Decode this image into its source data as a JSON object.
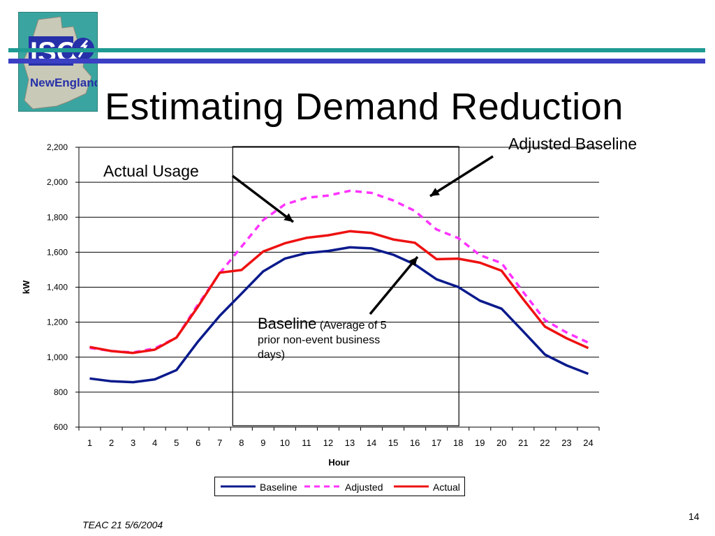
{
  "slide": {
    "title": "Estimating Demand Reduction",
    "footer": "TEAC 21 5/6/2004",
    "page_number": "14",
    "logo_text_top": "ISO",
    "logo_text_bottom": "NewEngland"
  },
  "annotations": {
    "adjusted_baseline": "Adjusted Baseline",
    "actual_usage": "Actual Usage",
    "baseline_title": "Baseline",
    "baseline_note": "(Average of 5 prior non-event business days)"
  },
  "colors": {
    "baseline": "#0a1a8c",
    "adjusted": "#ff33ff",
    "actual": "#ee1111",
    "stripe_teal": "#1f9b93",
    "stripe_blue": "#3b3fc4",
    "logo_bg": "#3aa5a0"
  },
  "chart_data": {
    "type": "line",
    "xlabel": "Hour",
    "ylabel": "kW",
    "ylim": [
      600,
      2200
    ],
    "yticks": [
      600,
      800,
      1000,
      1200,
      1400,
      1600,
      1800,
      2000,
      2200
    ],
    "ytick_labels": [
      "600",
      "800",
      "1,000",
      "1,200",
      "1,400",
      "1,600",
      "1,800",
      "2,000",
      "2,200"
    ],
    "categories": [
      "1",
      "2",
      "3",
      "4",
      "5",
      "6",
      "7",
      "8",
      "9",
      "10",
      "11",
      "12",
      "13",
      "14",
      "15",
      "16",
      "17",
      "18",
      "19",
      "20",
      "21",
      "22",
      "23",
      "24"
    ],
    "grid": true,
    "legend": "bottom",
    "event_window": {
      "start_hour": 7,
      "end_hour": 18
    },
    "series": [
      {
        "name": "Baseline",
        "style": "solid",
        "values": [
          878,
          862,
          857,
          873,
          926,
          1090,
          1237,
          1363,
          1490,
          1563,
          1595,
          1607,
          1628,
          1622,
          1586,
          1530,
          1445,
          1401,
          1323,
          1277,
          1147,
          1015,
          953,
          905
        ]
      },
      {
        "name": "Adjusted",
        "style": "dashed",
        "values": [
          1053,
          1035,
          1027,
          1050,
          1112,
          1302,
          1480,
          1631,
          1784,
          1873,
          1911,
          1924,
          1951,
          1939,
          1896,
          1836,
          1730,
          1681,
          1583,
          1538,
          1372,
          1212,
          1141,
          1083
        ]
      },
      {
        "name": "Actual",
        "style": "solid",
        "values": [
          1058,
          1035,
          1024,
          1043,
          1112,
          1290,
          1483,
          1498,
          1604,
          1651,
          1682,
          1697,
          1720,
          1710,
          1673,
          1654,
          1560,
          1563,
          1540,
          1494,
          1331,
          1175,
          1108,
          1052
        ]
      }
    ]
  }
}
